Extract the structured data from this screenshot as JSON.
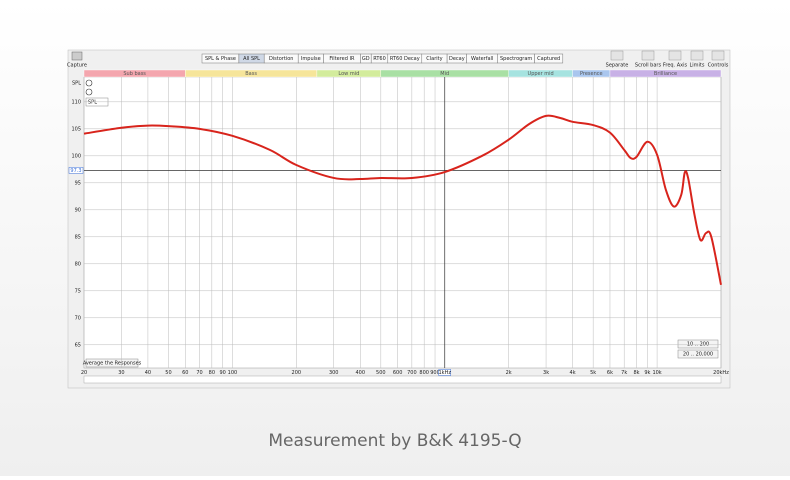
{
  "toolbar": {
    "capture": "Capture",
    "tabs": [
      "SPL & Phase",
      "All SPL",
      "Distortion",
      "Impulse",
      "Filtered IR",
      "GD",
      "RT60",
      "RT60 Decay",
      "Clarity",
      "Decay",
      "Waterfall",
      "Spectrogram",
      "Captured"
    ],
    "active_tab": "All SPL",
    "tools": [
      "Separate",
      "Scroll bars",
      "Freq. Axis",
      "Limits",
      "Controls"
    ]
  },
  "bands": [
    {
      "label": "Sub bass",
      "from": 20,
      "to": 60,
      "color": "#f4a6ae"
    },
    {
      "label": "Bass",
      "from": 60,
      "to": 250,
      "color": "#f6e59a"
    },
    {
      "label": "Low mid",
      "from": 250,
      "to": 500,
      "color": "#d3ec9c"
    },
    {
      "label": "Mid",
      "from": 500,
      "to": 2000,
      "color": "#a9e0a4"
    },
    {
      "label": "Upper mid",
      "from": 2000,
      "to": 4000,
      "color": "#a6e3e0"
    },
    {
      "label": "Presence",
      "from": 4000,
      "to": 6000,
      "color": "#a9c6ee"
    },
    {
      "label": "Brilliance",
      "from": 6000,
      "to": 20000,
      "color": "#c8b1e6"
    }
  ],
  "chart_data": {
    "type": "line",
    "y_label": "SPL",
    "log_x": true,
    "grid": true,
    "color": "#d8241c",
    "x": [
      20,
      30,
      40,
      50,
      70,
      100,
      150,
      200,
      300,
      400,
      500,
      700,
      1000,
      1500,
      2000,
      2500,
      3000,
      3500,
      4000,
      5000,
      6000,
      7000,
      7500,
      8000,
      9000,
      10000,
      11000,
      12000,
      13000,
      13500,
      14000,
      15000,
      16000,
      17000,
      18000,
      20000
    ],
    "values": [
      104.1,
      105.2,
      105.6,
      105.5,
      105.0,
      103.7,
      101.1,
      98.3,
      95.9,
      95.7,
      95.9,
      95.9,
      97.0,
      100.0,
      103.0,
      105.9,
      107.4,
      107.0,
      106.3,
      105.7,
      104.3,
      101.1,
      99.6,
      99.8,
      102.6,
      100.2,
      93.7,
      90.6,
      92.8,
      96.9,
      95.9,
      89.1,
      84.4,
      85.7,
      85.0,
      76.1
    ],
    "xlim": [
      20,
      20000
    ],
    "ylim": [
      60.7,
      114.6
    ],
    "yticks": [
      65,
      70,
      75,
      80,
      85,
      90,
      95,
      100,
      105,
      110
    ],
    "xticks": [
      20,
      30,
      40,
      50,
      60,
      70,
      80,
      90,
      100,
      200,
      300,
      400,
      500,
      600,
      700,
      800,
      900,
      {
        "value": 1000,
        "label": "1kHz"
      },
      {
        "value": 2000,
        "label": "2k"
      },
      {
        "value": 3000,
        "label": "3k"
      },
      {
        "value": 4000,
        "label": "4k"
      },
      {
        "value": 5000,
        "label": "5k"
      },
      {
        "value": 6000,
        "label": "6k"
      },
      {
        "value": 7000,
        "label": "7k"
      },
      {
        "value": 8000,
        "label": "8k"
      },
      {
        "value": 9000,
        "label": "9k"
      },
      {
        "value": 10000,
        "label": "10k"
      },
      {
        "value": 20000,
        "label": "20kHz"
      }
    ],
    "cursor": {
      "x": 1000,
      "y": {
        "value": 97.3,
        "label": "97.3"
      }
    }
  },
  "controls": {
    "spl_select": "SPL",
    "average_button": "Average the Responses",
    "range_buttons": [
      "10 .. 200",
      "20 .. 20,000"
    ]
  },
  "caption": "Measurement by B&K 4195-Q"
}
